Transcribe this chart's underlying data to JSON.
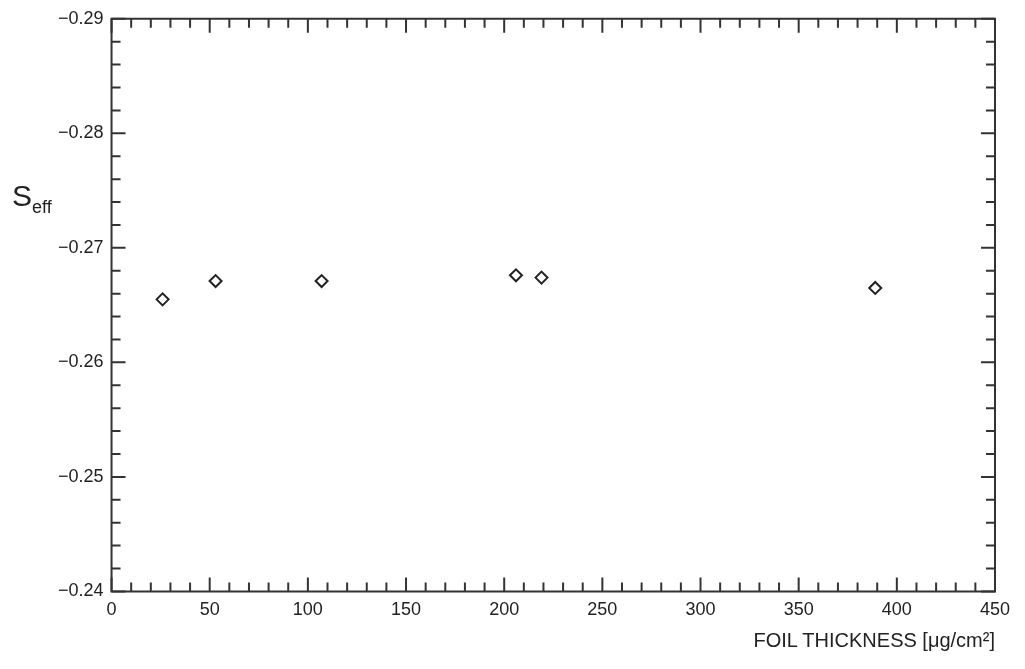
{
  "chart_data": {
    "type": "scatter",
    "xlabel": "FOIL THICKNESS [μg/cm²]",
    "ylabel": "S$_{eff}$",
    "x": [
      26,
      53,
      107,
      206,
      219,
      389
    ],
    "series": [
      {
        "color": "#222222",
        "values": [
          -0.2655,
          -0.2671,
          -0.2671,
          -0.2676,
          -0.2674,
          -0.2665
        ]
      }
    ],
    "marker": "diamond",
    "xlim": [
      0,
      450
    ],
    "xticks": [
      0,
      {
        "value": 10,
        "label": null
      },
      {
        "value": 20,
        "label": null
      },
      {
        "value": 30,
        "label": null
      },
      {
        "value": 40,
        "label": null
      },
      50,
      {
        "value": 60,
        "label": null
      },
      {
        "value": 70,
        "label": null
      },
      {
        "value": 80,
        "label": null
      },
      {
        "value": 90,
        "label": null
      },
      100,
      {
        "value": 110,
        "label": null
      },
      {
        "value": 120,
        "label": null
      },
      {
        "value": 130,
        "label": null
      },
      {
        "value": 140,
        "label": null
      },
      150,
      {
        "value": 160,
        "label": null
      },
      {
        "value": 170,
        "label": null
      },
      {
        "value": 180,
        "label": null
      },
      {
        "value": 190,
        "label": null
      },
      200,
      {
        "value": 210,
        "label": null
      },
      {
        "value": 220,
        "label": null
      },
      {
        "value": 230,
        "label": null
      },
      {
        "value": 240,
        "label": null
      },
      250,
      {
        "value": 260,
        "label": null
      },
      {
        "value": 270,
        "label": null
      },
      {
        "value": 280,
        "label": null
      },
      {
        "value": 290,
        "label": null
      },
      300,
      {
        "value": 310,
        "label": null
      },
      {
        "value": 320,
        "label": null
      },
      {
        "value": 330,
        "label": null
      },
      {
        "value": 340,
        "label": null
      },
      350,
      {
        "value": 360,
        "label": null
      },
      {
        "value": 370,
        "label": null
      },
      {
        "value": 380,
        "label": null
      },
      {
        "value": 390,
        "label": null
      },
      400,
      {
        "value": 410,
        "label": null
      },
      {
        "value": 420,
        "label": null
      },
      {
        "value": 430,
        "label": null
      },
      {
        "value": 440,
        "label": null
      },
      450
    ],
    "ylim": [
      -0.24,
      -0.29
    ],
    "yticks": [
      {
        "value": -0.24,
        "label": "−0.24"
      },
      {
        "value": -0.242,
        "label": null
      },
      {
        "value": -0.244,
        "label": null
      },
      {
        "value": -0.246,
        "label": null
      },
      {
        "value": -0.248,
        "label": null
      },
      {
        "value": -0.25,
        "label": "−0.25"
      },
      {
        "value": -0.252,
        "label": null
      },
      {
        "value": -0.254,
        "label": null
      },
      {
        "value": -0.256,
        "label": null
      },
      {
        "value": -0.258,
        "label": null
      },
      {
        "value": -0.26,
        "label": "−0.26"
      },
      {
        "value": -0.262,
        "label": null
      },
      {
        "value": -0.264,
        "label": null
      },
      {
        "value": -0.266,
        "label": null
      },
      {
        "value": -0.268,
        "label": null
      },
      {
        "value": -0.27,
        "label": "−0.27"
      },
      {
        "value": -0.272,
        "label": null
      },
      {
        "value": -0.274,
        "label": null
      },
      {
        "value": -0.276,
        "label": null
      },
      {
        "value": -0.278,
        "label": null
      },
      {
        "value": -0.28,
        "label": "−0.28"
      },
      {
        "value": -0.282,
        "label": null
      },
      {
        "value": -0.284,
        "label": null
      },
      {
        "value": -0.286,
        "label": null
      },
      {
        "value": -0.288,
        "label": null
      },
      {
        "value": -0.29,
        "label": "−0.29"
      }
    ]
  }
}
